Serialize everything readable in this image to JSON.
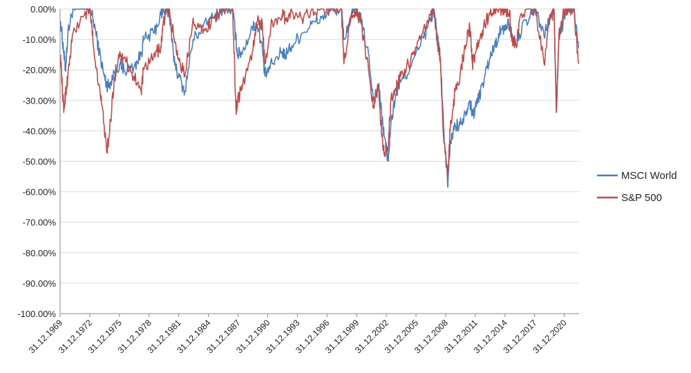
{
  "chart_data": {
    "type": "line",
    "title": "",
    "xlabel": "",
    "ylabel": "",
    "ylim": [
      -100,
      0
    ],
    "y_ticks": [
      0,
      -10,
      -20,
      -30,
      -40,
      -50,
      -60,
      -70,
      -80,
      -90,
      -100
    ],
    "y_tick_labels": [
      "0.00%",
      "-10.00%",
      "-20.00%",
      "-30.00%",
      "-40.00%",
      "-50.00%",
      "-60.00%",
      "-70.00%",
      "-80.00%",
      "-90.00%",
      "-100.00%"
    ],
    "x_range": [
      "31.12.1969",
      "30.06.2022"
    ],
    "x_tick_labels": [
      "31.12.1969",
      "31.12.1972",
      "31.12.1975",
      "31.12.1978",
      "31.12.1981",
      "31.12.1984",
      "31.12.1987",
      "31.12.1990",
      "31.12.1993",
      "31.12.1996",
      "31.12.1999",
      "31.12.2002",
      "31.12.2005",
      "31.12.2008",
      "31.12.2011",
      "31.12.2014",
      "31.12.2017",
      "31.12.2020"
    ],
    "grid": "horizontal",
    "legend_position": "right",
    "series": [
      {
        "name": "MSCI World",
        "color": "#4a7ebb",
        "x": [
          "1970-01",
          "1970-05",
          "1970-07",
          "1970-10",
          "1971-04",
          "1972-04",
          "1973-01",
          "1973-06",
          "1973-12",
          "1974-06",
          "1974-09",
          "1974-12",
          "1975-06",
          "1976-01",
          "1976-06",
          "1977-06",
          "1978-03",
          "1978-06",
          "1979-06",
          "1980-03",
          "1980-06",
          "1980-12",
          "1981-06",
          "1981-12",
          "1982-08",
          "1983-06",
          "1984-06",
          "1985-06",
          "1986-06",
          "1987-06",
          "1987-10",
          "1987-12",
          "1988-06",
          "1989-06",
          "1989-12",
          "1990-06",
          "1990-09",
          "1991-06",
          "1992-06",
          "1992-10",
          "1993-06",
          "1994-06",
          "1995-06",
          "1996-06",
          "1997-06",
          "1998-06",
          "1998-09",
          "1999-06",
          "1999-12",
          "2000-06",
          "2001-03",
          "2001-09",
          "2002-03",
          "2002-07",
          "2002-10",
          "2003-03",
          "2003-06",
          "2003-12",
          "2004-06",
          "2005-06",
          "2006-06",
          "2007-06",
          "2007-10",
          "2008-03",
          "2008-06",
          "2008-10",
          "2009-03",
          "2009-06",
          "2009-12",
          "2010-06",
          "2010-12",
          "2011-06",
          "2011-09",
          "2011-12",
          "2012-06",
          "2012-12",
          "2013-06",
          "2013-12",
          "2014-06",
          "2014-12",
          "2015-06",
          "2015-09",
          "2016-02",
          "2016-06",
          "2017-06",
          "2018-01",
          "2018-12",
          "2019-06",
          "2019-12",
          "2020-03",
          "2020-06",
          "2020-12",
          "2021-06",
          "2021-12",
          "2022-06"
        ],
        "values": [
          -4,
          -14,
          -20,
          -8,
          0,
          0,
          0,
          -5,
          -14,
          -22,
          -25,
          -25,
          -21,
          -18,
          -20,
          -19,
          -15,
          -10,
          -8,
          -2,
          0,
          0,
          -15,
          -22,
          -27,
          -10,
          -6,
          -3,
          0,
          0,
          -10,
          -15,
          -14,
          -6,
          -5,
          -13,
          -22,
          -18,
          -14,
          -15,
          -12,
          -8,
          -5,
          -3,
          0,
          0,
          -10,
          -2,
          0,
          -4,
          -15,
          -30,
          -25,
          -35,
          -42,
          -50,
          -38,
          -28,
          -24,
          -19,
          -12,
          -4,
          0,
          -10,
          -16,
          -38,
          -58,
          -44,
          -38,
          -38,
          -34,
          -30,
          -35,
          -33,
          -28,
          -22,
          -16,
          -12,
          -8,
          -6,
          -5,
          -9,
          -12,
          -8,
          -3,
          0,
          -9,
          -4,
          0,
          -33,
          -10,
          -3,
          0,
          0,
          -13
        ]
      },
      {
        "name": "S&P 500",
        "color": "#be4b48",
        "x": [
          "1970-01",
          "1970-05",
          "1970-07",
          "1970-10",
          "1971-04",
          "1972-06",
          "1973-01",
          "1973-06",
          "1973-12",
          "1974-06",
          "1974-09",
          "1974-12",
          "1975-06",
          "1976-01",
          "1976-06",
          "1977-06",
          "1978-03",
          "1978-06",
          "1979-06",
          "1980-03",
          "1980-06",
          "1980-12",
          "1981-06",
          "1981-12",
          "1982-08",
          "1983-06",
          "1984-06",
          "1985-06",
          "1986-06",
          "1987-06",
          "1987-10",
          "1987-12",
          "1988-06",
          "1989-06",
          "1989-12",
          "1990-06",
          "1990-09",
          "1991-06",
          "1992-06",
          "1992-10",
          "1993-06",
          "1994-06",
          "1995-06",
          "1996-06",
          "1997-06",
          "1998-06",
          "1998-09",
          "1999-06",
          "1999-12",
          "2000-06",
          "2001-03",
          "2001-09",
          "2002-03",
          "2002-07",
          "2002-10",
          "2003-03",
          "2003-06",
          "2003-12",
          "2004-06",
          "2005-06",
          "2006-06",
          "2007-06",
          "2007-10",
          "2008-03",
          "2008-06",
          "2008-10",
          "2009-03",
          "2009-06",
          "2009-12",
          "2010-06",
          "2010-12",
          "2011-06",
          "2011-09",
          "2011-12",
          "2012-06",
          "2012-12",
          "2013-06",
          "2013-12",
          "2014-06",
          "2014-12",
          "2015-06",
          "2015-09",
          "2016-02",
          "2016-06",
          "2017-06",
          "2018-01",
          "2018-12",
          "2019-06",
          "2019-12",
          "2020-03",
          "2020-06",
          "2020-12",
          "2021-06",
          "2021-12",
          "2022-06"
        ],
        "values": [
          -15,
          -34,
          -28,
          -22,
          -8,
          -2,
          0,
          -15,
          -25,
          -38,
          -47,
          -42,
          -24,
          -14,
          -16,
          -22,
          -27,
          -20,
          -16,
          -12,
          -4,
          0,
          -8,
          -16,
          -22,
          -3,
          -8,
          -3,
          0,
          0,
          -33,
          -30,
          -25,
          -14,
          -4,
          -5,
          -18,
          -4,
          -2,
          -3,
          -1,
          -3,
          0,
          0,
          0,
          0,
          -18,
          -2,
          0,
          -5,
          -20,
          -32,
          -25,
          -42,
          -47,
          -45,
          -30,
          -26,
          -22,
          -17,
          -10,
          -2,
          0,
          -12,
          -16,
          -42,
          -55,
          -40,
          -27,
          -22,
          -12,
          -6,
          -18,
          -15,
          -10,
          -5,
          -2,
          0,
          0,
          0,
          -1,
          -10,
          -12,
          -4,
          0,
          0,
          -18,
          -5,
          0,
          -34,
          -8,
          0,
          0,
          0,
          -18
        ]
      }
    ]
  }
}
